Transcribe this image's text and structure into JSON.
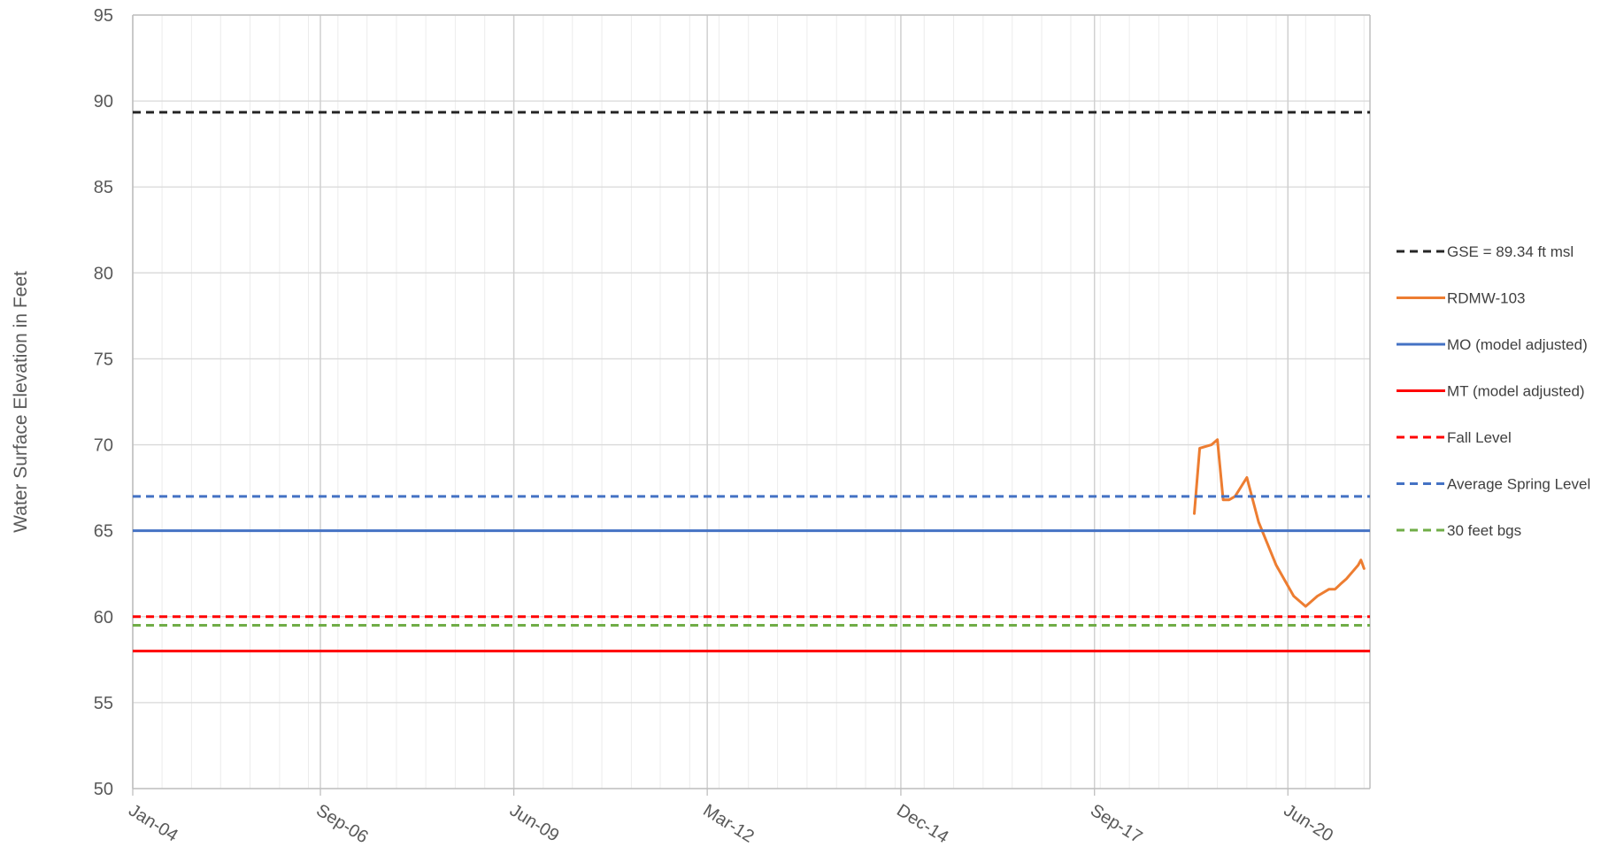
{
  "chart_data": {
    "type": "line",
    "title": "",
    "xlabel": "",
    "ylabel": "Water Surface Elevation in Feet",
    "xlim": [
      "2004-01-01",
      "2021-08-01"
    ],
    "ylim": [
      50,
      95
    ],
    "yticks": [
      50,
      55,
      60,
      65,
      70,
      75,
      80,
      85,
      90,
      95
    ],
    "xticks": [
      {
        "date": "2004-01-01",
        "label": "Jan-04"
      },
      {
        "date": "2006-09-01",
        "label": "Sep-06"
      },
      {
        "date": "2009-06-01",
        "label": "Jun-09"
      },
      {
        "date": "2012-03-01",
        "label": "Mar-12"
      },
      {
        "date": "2014-12-01",
        "label": "Dec-14"
      },
      {
        "date": "2017-09-01",
        "label": "Sep-17"
      },
      {
        "date": "2020-06-01",
        "label": "Jun-20"
      }
    ],
    "grid": true,
    "legend_position": "right",
    "series": [
      {
        "name": "GSE = 89.34 ft msl",
        "kind": "hline",
        "y": 89.34,
        "color": "#262626",
        "dash": "dashed"
      },
      {
        "name": "RDMW-103",
        "kind": "line",
        "color": "#ED7D31",
        "dash": "solid",
        "points": [
          [
            "2019-02-01",
            66.0
          ],
          [
            "2019-03-01",
            69.8
          ],
          [
            "2019-05-01",
            70.0
          ],
          [
            "2019-06-01",
            70.3
          ],
          [
            "2019-07-01",
            66.8
          ],
          [
            "2019-08-01",
            66.8
          ],
          [
            "2019-09-01",
            67.0
          ],
          [
            "2019-11-01",
            68.1
          ],
          [
            "2020-01-01",
            65.5
          ],
          [
            "2020-04-01",
            63.0
          ],
          [
            "2020-07-01",
            61.2
          ],
          [
            "2020-09-01",
            60.6
          ],
          [
            "2020-11-01",
            61.2
          ],
          [
            "2021-01-01",
            61.6
          ],
          [
            "2021-02-01",
            61.6
          ],
          [
            "2021-03-01",
            61.9
          ],
          [
            "2021-04-01",
            62.2
          ],
          [
            "2021-05-01",
            62.6
          ],
          [
            "2021-06-01",
            63.0
          ],
          [
            "2021-06-15",
            63.3
          ],
          [
            "2021-07-01",
            62.8
          ]
        ]
      },
      {
        "name": "MO (model adjusted)",
        "kind": "hline",
        "y": 65.0,
        "color": "#4472C4",
        "dash": "solid"
      },
      {
        "name": "MT (model adjusted)",
        "kind": "hline",
        "y": 58.0,
        "color": "#FF0000",
        "dash": "solid"
      },
      {
        "name": "Fall Level",
        "kind": "hline",
        "y": 60.0,
        "color": "#FF0000",
        "dash": "dashed"
      },
      {
        "name": "Average Spring Level",
        "kind": "hline",
        "y": 67.0,
        "color": "#4472C4",
        "dash": "dashed"
      },
      {
        "name": "30 feet bgs",
        "kind": "hline",
        "y": 59.5,
        "color": "#70AD47",
        "dash": "dashed"
      }
    ]
  }
}
